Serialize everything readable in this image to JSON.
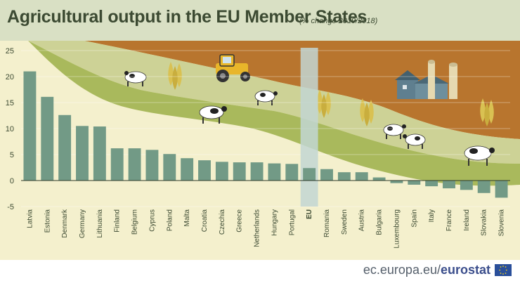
{
  "header": {
    "title": "Agricultural output in the EU Member States",
    "subtitle": "(% change 2019/2018)"
  },
  "footer": {
    "source_prefix": "ec.europa.eu/",
    "source_brand": "eurostat"
  },
  "icons": [
    "tractor-icon",
    "cow-icon",
    "corn-icon",
    "farm-building-icon",
    "eu-flag-icon"
  ],
  "colors": {
    "bar": "#729a86",
    "eu_highlight": "#c2d6d2",
    "background": "#f4f0cd",
    "hill_brown": "#b8752e",
    "hill_light_green": "#cdd296",
    "hill_green": "#a9b95c",
    "header_band": "#d9e0c4"
  },
  "chart_data": {
    "type": "bar",
    "title": "Agricultural output in the EU Member States",
    "subtitle": "(% change 2019/2018)",
    "xlabel": "",
    "ylabel": "",
    "ylim": [
      -5,
      25
    ],
    "yticks": [
      25,
      20,
      15,
      10,
      5,
      0,
      -5
    ],
    "grid": false,
    "legend": "none",
    "highlight_category": "EU",
    "categories": [
      "Latvia",
      "Estonia",
      "Denmark",
      "Germany",
      "Lithuania",
      "Finland",
      "Belgium",
      "Cyprus",
      "Poland",
      "Malta",
      "Croatia",
      "Czechia",
      "Greece",
      "Netherlands",
      "Hungary",
      "Portugal",
      "EU",
      "Romania",
      "Sweden",
      "Austria",
      "Bulgaria",
      "Luxembourg",
      "Spain",
      "Italy",
      "France",
      "Ireland",
      "Slovakia",
      "Slovenia"
    ],
    "values": [
      21.0,
      16.1,
      12.6,
      10.5,
      10.4,
      6.2,
      6.2,
      5.9,
      5.1,
      4.3,
      3.9,
      3.6,
      3.5,
      3.5,
      3.3,
      3.2,
      2.4,
      2.2,
      1.6,
      1.6,
      0.6,
      -0.5,
      -0.8,
      -1.1,
      -1.5,
      -1.8,
      -2.4,
      -3.3
    ]
  }
}
